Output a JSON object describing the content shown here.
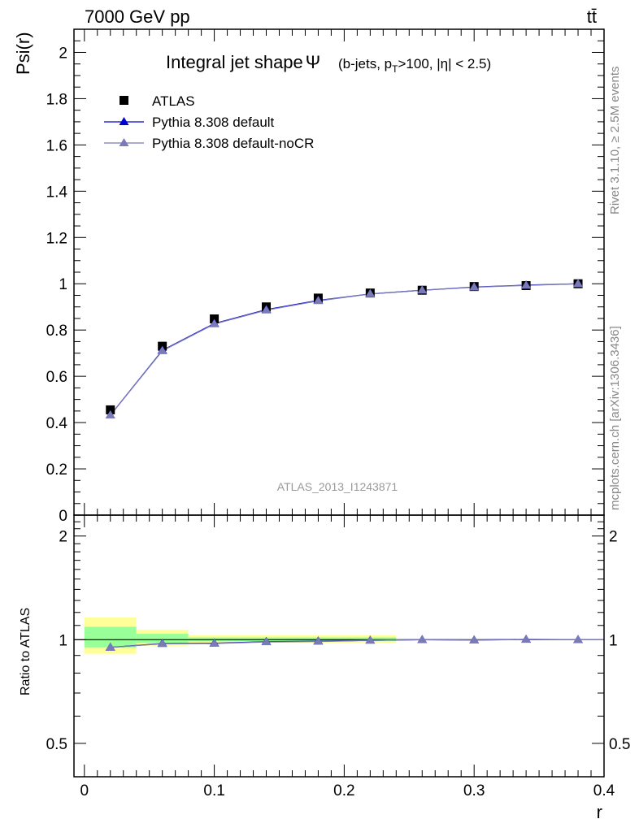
{
  "header": {
    "energy_label": "7000 GeV pp",
    "process_label": "tt̄"
  },
  "side_labels": {
    "rivet": "Rivet 3.1.10, ≥ 2.5M events",
    "mcplots": "mcplots.cern.ch [arXiv:1306.3436]"
  },
  "chart_data": [
    {
      "type": "line",
      "title": "Integral jet shape",
      "title_symbol": "Ψ",
      "subtitle": "(b-jets, p_T>100, |η| < 2.5)",
      "watermark": "ATLAS_2013_I1243871",
      "ylabel": "Psi(r)",
      "xlabel": "",
      "xlim": [
        -0.008,
        0.4
      ],
      "ylim": [
        0,
        2.1
      ],
      "yticks": [
        0,
        0.2,
        0.4,
        0.6,
        0.8,
        1,
        1.2,
        1.4,
        1.6,
        1.8,
        2
      ],
      "ytick_labels": [
        "0",
        "0.2",
        "0.4",
        "0.6",
        "0.8",
        "1",
        "1.2",
        "1.4",
        "1.6",
        "1.8",
        "2"
      ],
      "legend_position": "top-left",
      "x": [
        0.02,
        0.06,
        0.1,
        0.14,
        0.18,
        0.22,
        0.26,
        0.3,
        0.34,
        0.38
      ],
      "series": [
        {
          "name": "ATLAS",
          "marker": "square",
          "color": "#000000",
          "values": [
            0.455,
            0.73,
            0.848,
            0.9,
            0.938,
            0.96,
            0.972,
            0.988,
            0.992,
            1.0
          ]
        },
        {
          "name": "Pythia 8.308 default",
          "marker": "triangle",
          "color": "#0000cc",
          "values": [
            0.432,
            0.712,
            0.828,
            0.888,
            0.928,
            0.956,
            0.972,
            0.986,
            0.994,
            1.0
          ]
        },
        {
          "name": "Pythia 8.308 default-noCR",
          "marker": "triangle",
          "color": "#7a7ab8",
          "values": [
            0.432,
            0.71,
            0.826,
            0.886,
            0.926,
            0.956,
            0.972,
            0.985,
            0.993,
            1.0
          ]
        }
      ]
    },
    {
      "type": "line",
      "ylabel": "Ratio to ATLAS",
      "xlabel": "r",
      "xlim": [
        -0.008,
        0.4
      ],
      "ylim": [
        0.4,
        2.3
      ],
      "yscale": "log",
      "yticks": [
        0.5,
        1,
        2
      ],
      "ytick_labels": [
        "0.5",
        "1",
        "2"
      ],
      "xticks": [
        0,
        0.1,
        0.2,
        0.3,
        0.4
      ],
      "xtick_labels": [
        "0",
        "0.1",
        "0.2",
        "0.3",
        "0.4"
      ],
      "uncertainty_bands": [
        {
          "x0": 0.0,
          "x1": 0.04,
          "yellow": [
            0.91,
            1.16
          ],
          "green": [
            0.95,
            1.09
          ]
        },
        {
          "x0": 0.04,
          "x1": 0.08,
          "yellow": [
            0.96,
            1.07
          ],
          "green": [
            0.98,
            1.04
          ]
        },
        {
          "x0": 0.08,
          "x1": 0.24,
          "yellow": [
            0.98,
            1.03
          ],
          "green": [
            0.99,
            1.015
          ]
        }
      ],
      "band_colors": {
        "yellow": "#ffff99",
        "green": "#99ff99"
      },
      "x": [
        0.02,
        0.06,
        0.1,
        0.14,
        0.18,
        0.22,
        0.26,
        0.3,
        0.34,
        0.38
      ],
      "series": [
        {
          "name": "Pythia 8.308 default",
          "color": "#0000cc",
          "values": [
            0.95,
            0.975,
            0.977,
            0.987,
            0.99,
            0.996,
            1.0,
            0.998,
            1.002,
            1.0
          ]
        },
        {
          "name": "Pythia 8.308 default-noCR",
          "color": "#7a7ab8",
          "values": [
            0.95,
            0.973,
            0.975,
            0.985,
            0.988,
            0.996,
            1.0,
            0.997,
            1.001,
            1.0
          ]
        }
      ]
    }
  ]
}
